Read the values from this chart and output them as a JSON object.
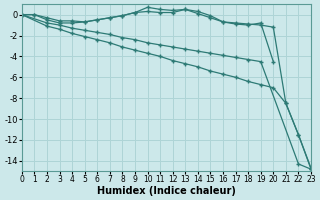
{
  "xlabel": "Humidex (Indice chaleur)",
  "background_color": "#cce8ea",
  "grid_color": "#aed4d6",
  "line_color": "#2d7a75",
  "xlim": [
    0,
    23
  ],
  "ylim": [
    -15,
    1
  ],
  "yticks": [
    0,
    -2,
    -4,
    -6,
    -8,
    -10,
    -12,
    -14
  ],
  "xticks": [
    0,
    1,
    2,
    3,
    4,
    5,
    6,
    7,
    8,
    9,
    10,
    11,
    12,
    13,
    14,
    15,
    16,
    17,
    18,
    19,
    20,
    21,
    22,
    23
  ],
  "lines": [
    {
      "x": [
        0,
        1,
        2,
        3,
        4,
        5,
        6,
        7,
        8,
        9,
        10,
        11,
        12,
        13,
        14,
        15,
        16,
        17,
        18,
        19,
        20
      ],
      "y": [
        0,
        0,
        -0.3,
        -0.6,
        -0.6,
        -0.7,
        -0.5,
        -0.3,
        -0.1,
        0.2,
        0.7,
        0.5,
        0.4,
        0.5,
        0.3,
        -0.1,
        -0.7,
        -0.9,
        -1.0,
        -0.8,
        -4.5
      ]
    },
    {
      "x": [
        0,
        1,
        2,
        3,
        4,
        5,
        6,
        7,
        8,
        9,
        10,
        11,
        12,
        13,
        14,
        15,
        16,
        17,
        18,
        19,
        20,
        21,
        22,
        23
      ],
      "y": [
        0,
        0,
        -0.5,
        -0.8,
        -0.8,
        -0.7,
        -0.5,
        -0.3,
        -0.1,
        0.2,
        0.3,
        0.2,
        0.2,
        0.5,
        0.1,
        -0.3,
        -0.7,
        -0.8,
        -0.9,
        -1.0,
        -1.2,
        -8.5,
        -11.5,
        -14.7
      ]
    },
    {
      "x": [
        0,
        2,
        3,
        4,
        5,
        6,
        7,
        8,
        9,
        10,
        11,
        12,
        13,
        14,
        15,
        16,
        17,
        18,
        19,
        22,
        23
      ],
      "y": [
        0,
        -0.8,
        -1.0,
        -1.3,
        -1.5,
        -1.7,
        -1.9,
        -2.2,
        -2.4,
        -2.7,
        -2.9,
        -3.1,
        -3.3,
        -3.5,
        -3.7,
        -3.9,
        -4.1,
        -4.3,
        -4.5,
        -14.3,
        -14.8
      ]
    },
    {
      "x": [
        0,
        2,
        3,
        4,
        5,
        6,
        7,
        8,
        9,
        10,
        11,
        12,
        13,
        14,
        15,
        16,
        17,
        18,
        19,
        20,
        21,
        22,
        23
      ],
      "y": [
        0,
        -1.1,
        -1.4,
        -1.8,
        -2.1,
        -2.4,
        -2.7,
        -3.1,
        -3.4,
        -3.7,
        -4.0,
        -4.4,
        -4.7,
        -5.0,
        -5.4,
        -5.7,
        -6.0,
        -6.4,
        -6.7,
        -7.0,
        -8.5,
        -11.5,
        -14.8
      ]
    }
  ]
}
